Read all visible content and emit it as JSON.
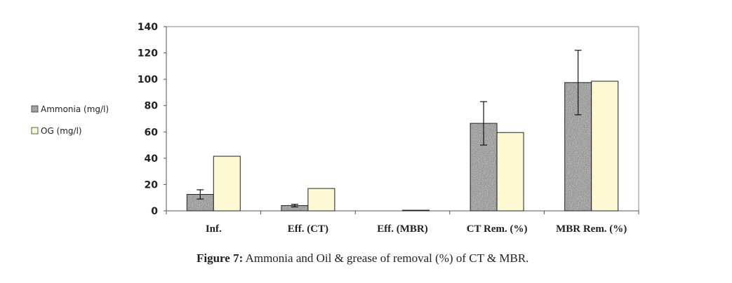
{
  "figure": {
    "label": "Figure 7:",
    "caption": "Ammonia and Oil & grease of removal (%) of CT & MBR."
  },
  "chart_data": {
    "type": "bar",
    "categories": [
      "Inf.",
      "Eff. (CT)",
      "Eff. (MBR)",
      "CT Rem. (%)",
      "MBR Rem. (%)"
    ],
    "series": [
      {
        "name": "Ammonia (mg/l)",
        "values": [
          12.5,
          4,
          0,
          66.5,
          97.5
        ],
        "error": [
          3.5,
          1,
          0,
          16.5,
          24.5
        ],
        "color": "#8a8a8a",
        "pattern": "granite"
      },
      {
        "name": "OG (mg/l)",
        "values": [
          41.5,
          17,
          0.5,
          59.5,
          98.5
        ],
        "color": "#fdf9d2"
      }
    ],
    "ylim": [
      0,
      140
    ],
    "yticks": [
      0,
      20,
      40,
      60,
      80,
      100,
      120,
      140
    ],
    "grid": false,
    "legend": "left",
    "xlabel": "",
    "ylabel": ""
  }
}
